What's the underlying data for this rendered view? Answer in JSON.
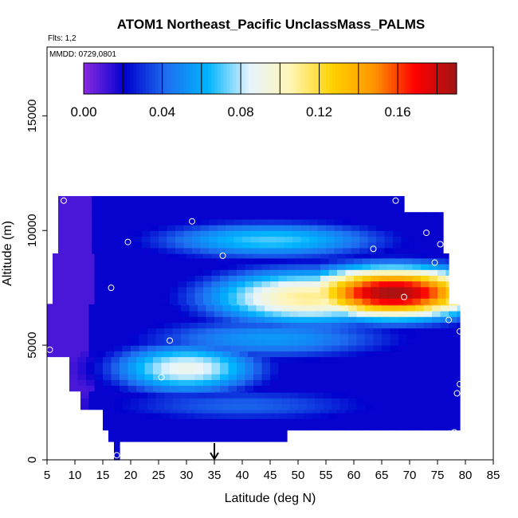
{
  "chart_data": {
    "type": "heatmap",
    "title": "ATOM1 Northeast_Pacific UnclassMass_PALMS",
    "flights_label": "Flts: 1,2",
    "dates_label": "MMDD: 0729,0801",
    "xlabel": "Latitude (deg N)",
    "ylabel": "Altitude (m)",
    "xlim": [
      5,
      85
    ],
    "ylim": [
      0,
      18000
    ],
    "x_ticks": [
      "5",
      "10",
      "15",
      "20",
      "25",
      "30",
      "35",
      "40",
      "45",
      "50",
      "55",
      "60",
      "65",
      "70",
      "75",
      "80",
      "85"
    ],
    "y_ticks": [
      "0",
      "5000",
      "10000",
      "15000"
    ],
    "colorbar": {
      "min": 0.0,
      "max": 0.19,
      "tick_labels": [
        "0.00",
        "0.04",
        "0.08",
        "0.12",
        "0.16"
      ],
      "tick_values": [
        0.0,
        0.04,
        0.08,
        0.12,
        0.16
      ],
      "boundaries": [
        0.02,
        0.04,
        0.06,
        0.08,
        0.1,
        0.12,
        0.14,
        0.16,
        0.18
      ],
      "colors": [
        "#8a2be2",
        "#0000cd",
        "#1e6ff0",
        "#00b4ff",
        "#e6f5ff",
        "#fff5b4",
        "#ffd200",
        "#ff9600",
        "#ff0000",
        "#a01414"
      ]
    },
    "marker": {
      "x": 35,
      "symbol": "down-arrow"
    },
    "domain_rows": [
      {
        "alt": [
          0,
          800
        ],
        "lat": [
          17,
          18
        ]
      },
      {
        "alt": [
          800,
          1300
        ],
        "lat": [
          16,
          48
        ]
      },
      {
        "alt": [
          1300,
          2200
        ],
        "lat": [
          15,
          79
        ]
      },
      {
        "alt": [
          2200,
          3000
        ],
        "lat": [
          11,
          79
        ]
      },
      {
        "alt": [
          3000,
          4500
        ],
        "lat": [
          9,
          79
        ]
      },
      {
        "alt": [
          4500,
          6800
        ],
        "lat": [
          5,
          79
        ]
      },
      {
        "alt": [
          6800,
          9000
        ],
        "lat": [
          6,
          77
        ]
      },
      {
        "alt": [
          9000,
          10800
        ],
        "lat": [
          7,
          76
        ]
      },
      {
        "alt": [
          10800,
          11500
        ],
        "lat": [
          7,
          69
        ]
      }
    ],
    "features": [
      {
        "name": "max-plume",
        "lat": 67,
        "alt": 7300,
        "sx": 12,
        "sy": 800,
        "value": 0.19
      },
      {
        "name": "plume-body",
        "lat": 52,
        "alt": 7100,
        "sx": 14,
        "sy": 900,
        "value": 0.11
      },
      {
        "name": "upper-band",
        "lat": 45,
        "alt": 9600,
        "sx": 16,
        "sy": 600,
        "value": 0.07
      },
      {
        "name": "lower-tongue",
        "lat": 30,
        "alt": 4000,
        "sx": 10,
        "sy": 800,
        "value": 0.09
      },
      {
        "name": "mid-band",
        "lat": 45,
        "alt": 5300,
        "sx": 18,
        "sy": 700,
        "value": 0.055
      },
      {
        "name": "low-band",
        "lat": 40,
        "alt": 2400,
        "sx": 20,
        "sy": 600,
        "value": 0.04
      }
    ],
    "points": [
      [
        17.5,
        200
      ],
      [
        5.5,
        4800
      ],
      [
        8,
        11300
      ],
      [
        19.5,
        9500
      ],
      [
        16.5,
        7500
      ],
      [
        25.5,
        3600
      ],
      [
        27,
        5200
      ],
      [
        31,
        10400
      ],
      [
        36.5,
        8900
      ],
      [
        63.5,
        9200
      ],
      [
        67.5,
        11300
      ],
      [
        73,
        9900
      ],
      [
        75.5,
        9400
      ],
      [
        74.5,
        8600
      ],
      [
        77.5,
        9700
      ],
      [
        69,
        7100
      ],
      [
        77,
        6100
      ],
      [
        79,
        5600
      ],
      [
        79,
        3300
      ],
      [
        78.5,
        2900
      ],
      [
        78,
        1200
      ]
    ]
  }
}
